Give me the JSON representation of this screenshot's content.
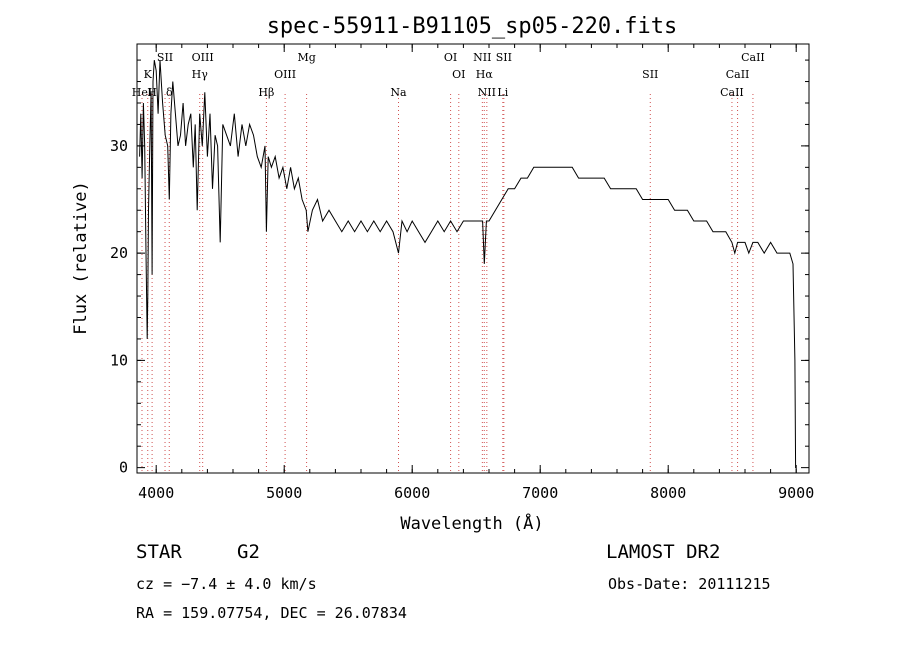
{
  "chart_data": {
    "type": "line",
    "title": "spec-55911-B91105_sp05-220.fits",
    "xlabel": "Wavelength (Å)",
    "ylabel": "Flux (relative)",
    "xlim": [
      3850,
      9100
    ],
    "ylim": [
      -0.5,
      39.5
    ],
    "xticks": [
      4000,
      5000,
      6000,
      7000,
      8000,
      9000
    ],
    "yticks": [
      0,
      10,
      20,
      30
    ],
    "grid": false,
    "series": [
      {
        "x": [
          3870,
          3880,
          3890,
          3900,
          3910,
          3920,
          3930,
          3934,
          3940,
          3950,
          3960,
          3968,
          3975,
          3985,
          4000,
          4015,
          4030,
          4050,
          4070,
          4090,
          4102,
          4115,
          4130,
          4150,
          4170,
          4190,
          4210,
          4230,
          4250,
          4270,
          4290,
          4305,
          4320,
          4340,
          4360,
          4380,
          4400,
          4420,
          4440,
          4460,
          4480,
          4500,
          4520,
          4550,
          4580,
          4610,
          4640,
          4670,
          4700,
          4730,
          4760,
          4790,
          4820,
          4850,
          4861,
          4875,
          4900,
          4930,
          4960,
          4990,
          5020,
          5050,
          5080,
          5110,
          5140,
          5172,
          5185,
          5220,
          5260,
          5300,
          5350,
          5400,
          5450,
          5500,
          5550,
          5600,
          5650,
          5700,
          5750,
          5800,
          5850,
          5893,
          5920,
          5960,
          6000,
          6050,
          6100,
          6150,
          6200,
          6250,
          6300,
          6350,
          6400,
          6450,
          6500,
          6550,
          6563,
          6580,
          6600,
          6650,
          6700,
          6750,
          6800,
          6850,
          6900,
          6950,
          7000,
          7050,
          7100,
          7150,
          7200,
          7250,
          7300,
          7350,
          7400,
          7450,
          7500,
          7550,
          7600,
          7650,
          7700,
          7750,
          7800,
          7850,
          7900,
          7950,
          8000,
          8050,
          8100,
          8150,
          8200,
          8250,
          8300,
          8350,
          8400,
          8450,
          8498,
          8520,
          8542,
          8570,
          8600,
          8630,
          8662,
          8700,
          8750,
          8800,
          8850,
          8900,
          8950,
          8975,
          8990,
          8995,
          9000
        ],
        "y": [
          29,
          33,
          27,
          34,
          30,
          20,
          12,
          16,
          24,
          30,
          35,
          18,
          36,
          38,
          37,
          33,
          38,
          34,
          31,
          30,
          25,
          33,
          36,
          33,
          30,
          31,
          34,
          30,
          32,
          33,
          28,
          32,
          24,
          33,
          30,
          35,
          29,
          33,
          26,
          31,
          30,
          21,
          32,
          31,
          30,
          33,
          29,
          32,
          30,
          32,
          31,
          29,
          28,
          30,
          22,
          29,
          28,
          29,
          27,
          28,
          26,
          28,
          26,
          27,
          25,
          24,
          22,
          24,
          25,
          23,
          24,
          23,
          22,
          23,
          22,
          23,
          22,
          23,
          22,
          23,
          22,
          20,
          23,
          22,
          23,
          22,
          21,
          22,
          23,
          22,
          23,
          22,
          23,
          23,
          23,
          23,
          19,
          23,
          23,
          24,
          25,
          26,
          26,
          27,
          27,
          28,
          28,
          28,
          28,
          28,
          28,
          28,
          27,
          27,
          27,
          27,
          27,
          26,
          26,
          26,
          26,
          26,
          25,
          25,
          25,
          25,
          25,
          24,
          24,
          24,
          23,
          23,
          23,
          22,
          22,
          22,
          21,
          20,
          21,
          21,
          21,
          20,
          21,
          21,
          20,
          21,
          20,
          20,
          20,
          19,
          10,
          0,
          0
        ]
      }
    ],
    "spectral_lines": [
      {
        "label": "HeI",
        "x": 3889,
        "row": 3
      },
      {
        "label": "K",
        "x": 3934,
        "row": 2
      },
      {
        "label": "SII",
        "x": 4069,
        "row": 1
      },
      {
        "label": "H",
        "x": 3968,
        "row": 3
      },
      {
        "label": "δ",
        "x": 4102,
        "row": 3
      },
      {
        "label": "OIII",
        "x": 4363,
        "row": 1
      },
      {
        "label": "Hγ",
        "x": 4340,
        "row": 2
      },
      {
        "label": "Hβ",
        "x": 4861,
        "row": 3
      },
      {
        "label": "OIII",
        "x": 5007,
        "row": 2
      },
      {
        "label": "Mg",
        "x": 5175,
        "row": 1
      },
      {
        "label": "Na",
        "x": 5893,
        "row": 3
      },
      {
        "label": "OI",
        "x": 6300,
        "row": 1
      },
      {
        "label": "OI",
        "x": 6364,
        "row": 2
      },
      {
        "label": "NII",
        "x": 6548,
        "row": 1
      },
      {
        "label": "Hα",
        "x": 6563,
        "row": 2
      },
      {
        "label": "NII",
        "x": 6583,
        "row": 3
      },
      {
        "label": "SII",
        "x": 6716,
        "row": 1
      },
      {
        "label": "Li",
        "x": 6708,
        "row": 3
      },
      {
        "label": "SII",
        "x": 7860,
        "row": 2
      },
      {
        "label": "CaII",
        "x": 8498,
        "row": 3
      },
      {
        "label": "CaII",
        "x": 8542,
        "row": 2
      },
      {
        "label": "CaII",
        "x": 8662,
        "row": 1
      }
    ]
  },
  "info": {
    "class": "STAR",
    "subclass": "G2",
    "survey": "LAMOST DR2",
    "cz": "cz = −7.4 ± 4.0 km/s",
    "obs_date": "Obs-Date: 20111215",
    "coords": "RA = 159.07754, DEC =  26.07834"
  }
}
